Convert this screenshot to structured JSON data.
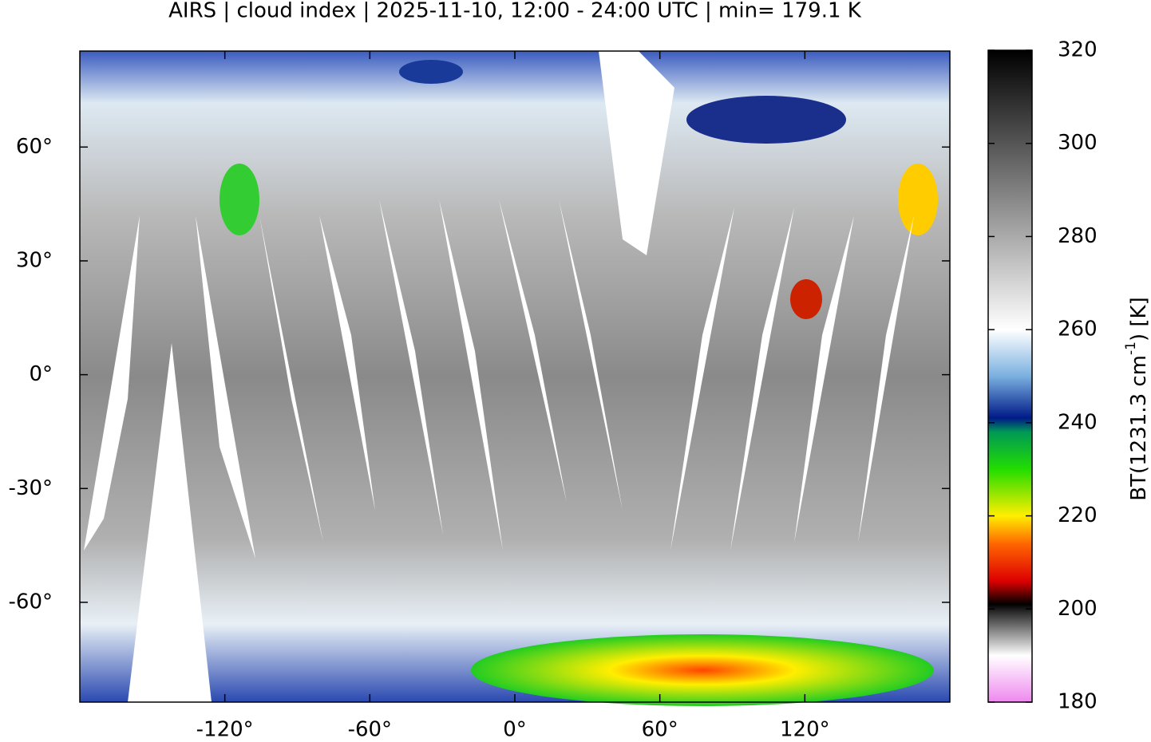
{
  "chart_data": {
    "type": "map",
    "title": "AIRS | cloud index | 2025-11-10, 12:00 - 24:00 UTC | min= 179.1 K",
    "xlim": [
      -180,
      180
    ],
    "ylim": [
      -86.3,
      85.3
    ],
    "xticks": [
      {
        "value": -120,
        "label": "-120°"
      },
      {
        "value": -60,
        "label": "-60°"
      },
      {
        "value": 0,
        "label": "0°"
      },
      {
        "value": 60,
        "label": "60°"
      },
      {
        "value": 120,
        "label": "120°"
      }
    ],
    "yticks": [
      {
        "value": -60,
        "label": "-60°"
      },
      {
        "value": -30,
        "label": "-30°"
      },
      {
        "value": 0,
        "label": "0°"
      },
      {
        "value": 30,
        "label": "30°"
      },
      {
        "value": 60,
        "label": "60°"
      }
    ],
    "colorbar": {
      "lim": [
        180,
        320
      ],
      "ticks": [
        180,
        200,
        220,
        240,
        260,
        280,
        300,
        320
      ],
      "label": {
        "text": "BT(1231.3 cm",
        "superscript": "-1",
        "suffix": ") [K]"
      },
      "colormap": [
        {
          "value": 180,
          "color": "#ee88ee"
        },
        {
          "value": 190,
          "color": "#ffffff"
        },
        {
          "value": 199,
          "color": "#333333"
        },
        {
          "value": 201,
          "color": "#000000"
        },
        {
          "value": 206,
          "color": "#dd0000"
        },
        {
          "value": 214,
          "color": "#ff6600"
        },
        {
          "value": 220,
          "color": "#ffee00"
        },
        {
          "value": 230,
          "color": "#22dd00"
        },
        {
          "value": 238,
          "color": "#009955"
        },
        {
          "value": 241,
          "color": "#001a88"
        },
        {
          "value": 250,
          "color": "#7ab0e0"
        },
        {
          "value": 260,
          "color": "#ffffff"
        },
        {
          "value": 320,
          "color": "#000000"
        }
      ]
    }
  }
}
